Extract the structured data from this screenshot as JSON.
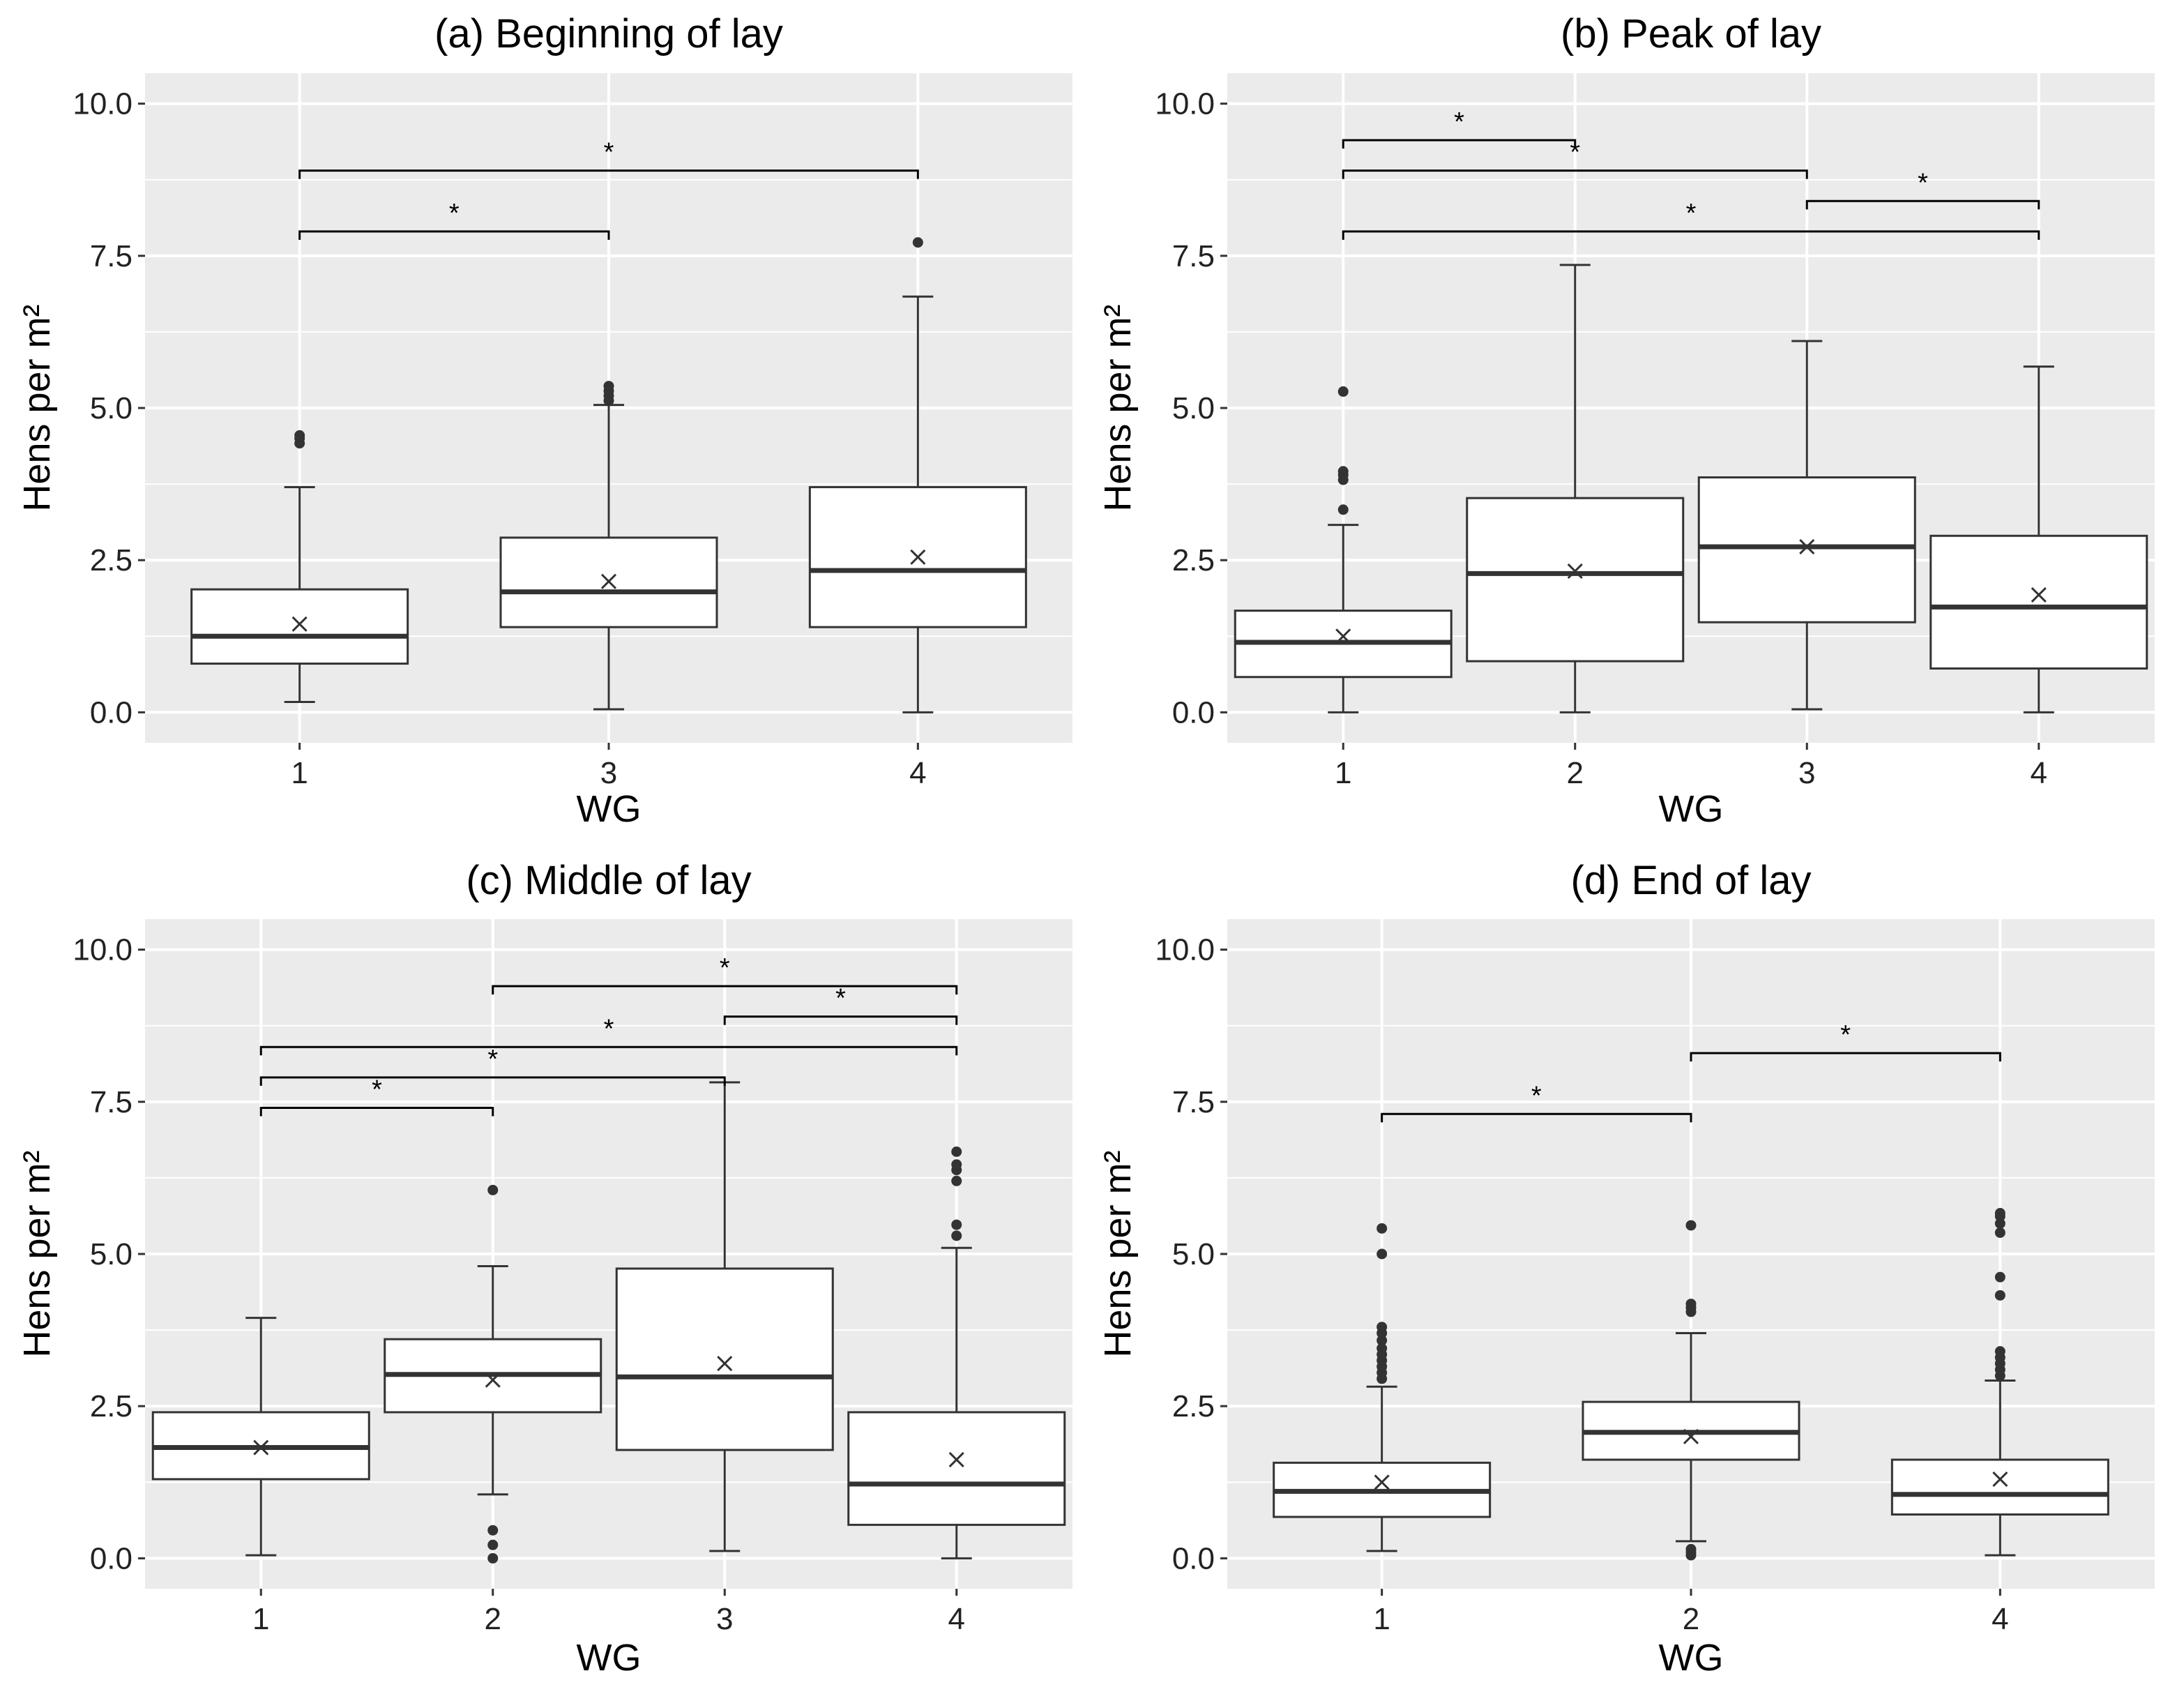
{
  "figure": {
    "description_free": true
  },
  "chart_data": [
    {
      "id": "a",
      "type": "box",
      "title": "(a) Beginning of lay",
      "xlabel": "WG",
      "ylabel": "Hens per m²",
      "ylim": [
        -0.5,
        10.5
      ],
      "yticks": [
        "0.0",
        "2.5",
        "5.0",
        "7.5",
        "10.0"
      ],
      "categories": [
        "1",
        "3",
        "4"
      ],
      "boxes": [
        {
          "q1": 0.8,
          "median": 1.25,
          "q3": 2.02,
          "low": 0.17,
          "high": 3.7,
          "mean": 1.45,
          "outliers": [
            4.42,
            4.5,
            4.55
          ]
        },
        {
          "q1": 1.4,
          "median": 1.98,
          "q3": 2.87,
          "low": 0.05,
          "high": 5.05,
          "mean": 2.15,
          "outliers": [
            5.12,
            5.2,
            5.28,
            5.36
          ]
        },
        {
          "q1": 1.4,
          "median": 2.33,
          "q3": 3.7,
          "low": 0.0,
          "high": 6.83,
          "mean": 2.55,
          "outliers": [
            7.72
          ]
        }
      ],
      "significance": [
        {
          "from": 0,
          "to": 1,
          "y": 7.9,
          "label": "*"
        },
        {
          "from": 0,
          "to": 2,
          "y": 8.9,
          "label": "*"
        }
      ]
    },
    {
      "id": "b",
      "type": "box",
      "title": "(b) Peak of lay",
      "xlabel": "WG",
      "ylabel": "Hens per m²",
      "ylim": [
        -0.5,
        10.5
      ],
      "yticks": [
        "0.0",
        "2.5",
        "5.0",
        "7.5",
        "10.0"
      ],
      "categories": [
        "1",
        "2",
        "3",
        "4"
      ],
      "boxes": [
        {
          "q1": 0.58,
          "median": 1.15,
          "q3": 1.67,
          "low": 0.0,
          "high": 3.08,
          "mean": 1.25,
          "outliers": [
            3.33,
            3.82,
            3.9,
            3.96,
            5.27
          ]
        },
        {
          "q1": 0.84,
          "median": 2.28,
          "q3": 3.52,
          "low": 0.0,
          "high": 7.35,
          "mean": 2.32,
          "outliers": []
        },
        {
          "q1": 1.48,
          "median": 2.72,
          "q3": 3.86,
          "low": 0.05,
          "high": 6.1,
          "mean": 2.72,
          "outliers": []
        },
        {
          "q1": 0.72,
          "median": 1.73,
          "q3": 2.9,
          "low": 0.0,
          "high": 5.68,
          "mean": 1.93,
          "outliers": []
        }
      ],
      "significance": [
        {
          "from": 0,
          "to": 1,
          "y": 9.4,
          "label": "*"
        },
        {
          "from": 0,
          "to": 2,
          "y": 8.9,
          "label": "*"
        },
        {
          "from": 2,
          "to": 3,
          "y": 8.4,
          "label": "*"
        },
        {
          "from": 0,
          "to": 3,
          "y": 7.9,
          "label": "*"
        }
      ]
    },
    {
      "id": "c",
      "type": "box",
      "title": "(c) Middle of lay",
      "xlabel": "WG",
      "ylabel": "Hens per m²",
      "ylim": [
        -0.5,
        10.5
      ],
      "yticks": [
        "0.0",
        "2.5",
        "5.0",
        "7.5",
        "10.0"
      ],
      "categories": [
        "1",
        "2",
        "3",
        "4"
      ],
      "boxes": [
        {
          "q1": 1.3,
          "median": 1.82,
          "q3": 2.4,
          "low": 0.05,
          "high": 3.95,
          "mean": 1.82,
          "outliers": []
        },
        {
          "q1": 2.4,
          "median": 3.02,
          "q3": 3.6,
          "low": 1.05,
          "high": 4.8,
          "mean": 2.93,
          "outliers": [
            0.0,
            0.22,
            0.46,
            6.05
          ]
        },
        {
          "q1": 1.78,
          "median": 2.98,
          "q3": 4.76,
          "low": 0.12,
          "high": 7.82,
          "mean": 3.2,
          "outliers": []
        },
        {
          "q1": 0.55,
          "median": 1.22,
          "q3": 2.4,
          "low": 0.0,
          "high": 5.1,
          "mean": 1.62,
          "outliers": [
            5.3,
            5.48,
            6.2,
            6.38,
            6.47,
            6.68
          ]
        }
      ],
      "significance": [
        {
          "from": 1,
          "to": 3,
          "y": 9.4,
          "label": "*"
        },
        {
          "from": 2,
          "to": 3,
          "y": 8.9,
          "label": "*"
        },
        {
          "from": 0,
          "to": 3,
          "y": 8.4,
          "label": "*"
        },
        {
          "from": 0,
          "to": 2,
          "y": 7.9,
          "label": "*"
        },
        {
          "from": 0,
          "to": 1,
          "y": 7.4,
          "label": "*"
        }
      ]
    },
    {
      "id": "d",
      "type": "box",
      "title": "(d) End of lay",
      "xlabel": "WG",
      "ylabel": "Hens per m²",
      "ylim": [
        -0.5,
        10.5
      ],
      "yticks": [
        "0.0",
        "2.5",
        "5.0",
        "7.5",
        "10.0"
      ],
      "categories": [
        "1",
        "2",
        "4"
      ],
      "boxes": [
        {
          "q1": 0.68,
          "median": 1.1,
          "q3": 1.57,
          "low": 0.12,
          "high": 2.82,
          "mean": 1.25,
          "outliers": [
            2.95,
            3.05,
            3.15,
            3.25,
            3.35,
            3.45,
            3.58,
            3.7,
            3.8,
            5.0,
            5.42
          ]
        },
        {
          "q1": 1.62,
          "median": 2.07,
          "q3": 2.57,
          "low": 0.28,
          "high": 3.7,
          "mean": 2.0,
          "outliers": [
            0.05,
            0.1,
            0.15,
            4.05,
            4.12,
            4.18,
            5.47
          ]
        },
        {
          "q1": 0.72,
          "median": 1.05,
          "q3": 1.62,
          "low": 0.05,
          "high": 2.92,
          "mean": 1.3,
          "outliers": [
            3.0,
            3.1,
            3.2,
            3.3,
            3.4,
            4.32,
            4.62,
            5.35,
            5.5,
            5.62,
            5.67
          ]
        }
      ],
      "significance": [
        {
          "from": 0,
          "to": 1,
          "y": 7.3,
          "label": "*"
        },
        {
          "from": 1,
          "to": 2,
          "y": 8.3,
          "label": "*"
        }
      ]
    }
  ]
}
